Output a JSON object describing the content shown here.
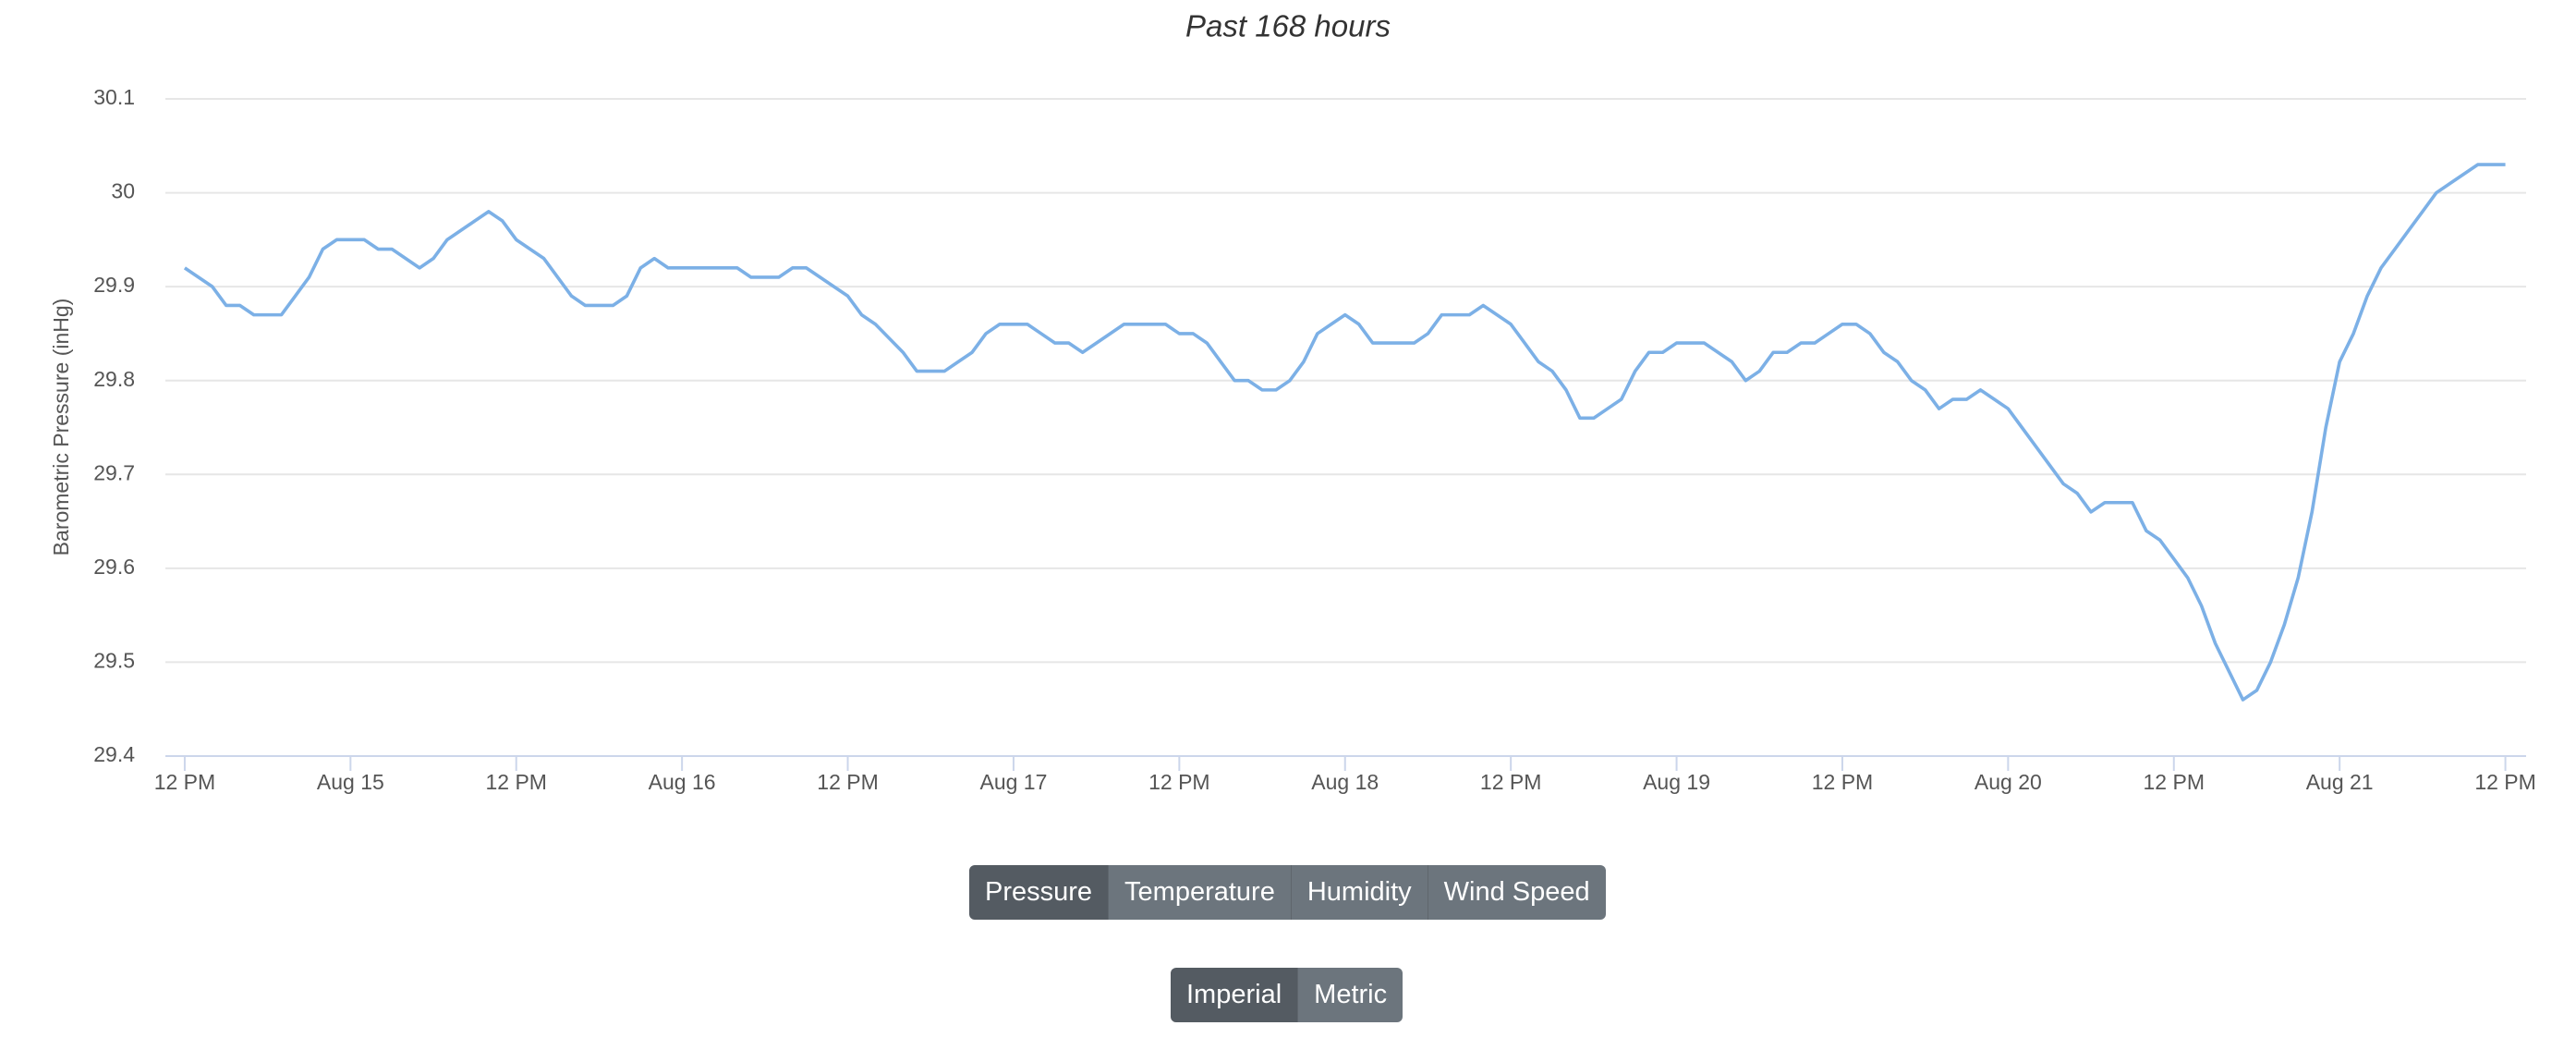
{
  "chart_data": {
    "type": "line",
    "title": "Past 168 hours",
    "y_label": "Barometric Pressure (inHg)",
    "x": [
      0,
      2,
      3,
      4,
      5,
      7,
      8,
      9,
      10,
      11,
      13,
      14,
      15,
      17,
      18,
      19,
      21,
      22,
      23,
      24,
      26,
      28,
      29,
      31,
      32,
      33,
      34,
      35,
      40,
      41,
      43,
      44,
      45,
      46,
      48,
      49,
      50,
      52,
      53,
      55,
      56,
      57,
      58,
      59,
      61,
      62,
      63,
      64,
      65,
      66,
      68,
      71,
      72,
      73,
      74,
      75,
      76,
      77,
      78,
      79,
      80,
      81,
      82,
      83,
      84,
      85,
      86,
      89,
      90,
      91,
      92,
      93,
      94,
      95,
      96,
      97,
      98,
      99,
      100,
      101,
      102,
      103,
      104,
      105,
      106,
      107,
      108,
      110,
      111,
      112,
      113,
      114,
      115,
      116,
      117,
      118,
      119,
      120,
      121,
      122,
      123,
      124,
      125,
      126,
      127,
      128,
      129,
      130,
      131,
      132,
      133,
      134,
      135,
      136,
      137,
      138,
      139,
      141,
      142,
      143,
      144,
      145,
      146,
      147,
      148,
      149,
      150,
      151,
      152,
      153,
      154,
      155,
      156,
      157,
      158,
      159,
      160,
      161,
      162,
      163,
      164,
      165,
      166,
      168
    ],
    "series": [
      {
        "name": "Pressure",
        "color": "#7cb0e6",
        "values": [
          29.92,
          29.9,
          29.88,
          29.88,
          29.87,
          29.87,
          29.89,
          29.91,
          29.94,
          29.95,
          29.95,
          29.94,
          29.94,
          29.92,
          29.93,
          29.95,
          29.97,
          29.98,
          29.97,
          29.95,
          29.93,
          29.89,
          29.88,
          29.88,
          29.89,
          29.92,
          29.93,
          29.92,
          29.92,
          29.91,
          29.91,
          29.92,
          29.92,
          29.91,
          29.89,
          29.87,
          29.86,
          29.83,
          29.81,
          29.81,
          29.82,
          29.83,
          29.85,
          29.86,
          29.86,
          29.85,
          29.84,
          29.84,
          29.83,
          29.84,
          29.86,
          29.86,
          29.85,
          29.85,
          29.84,
          29.82,
          29.8,
          29.8,
          29.79,
          29.79,
          29.8,
          29.82,
          29.85,
          29.86,
          29.87,
          29.86,
          29.84,
          29.84,
          29.85,
          29.87,
          29.87,
          29.87,
          29.88,
          29.87,
          29.86,
          29.84,
          29.82,
          29.81,
          29.79,
          29.76,
          29.76,
          29.77,
          29.78,
          29.81,
          29.83,
          29.83,
          29.84,
          29.84,
          29.83,
          29.82,
          29.8,
          29.81,
          29.83,
          29.83,
          29.84,
          29.84,
          29.85,
          29.86,
          29.86,
          29.85,
          29.83,
          29.82,
          29.8,
          29.79,
          29.77,
          29.78,
          29.78,
          29.79,
          29.78,
          29.77,
          29.75,
          29.73,
          29.71,
          29.69,
          29.68,
          29.66,
          29.67,
          29.67,
          29.64,
          29.63,
          29.61,
          29.59,
          29.56,
          29.52,
          29.49,
          29.46,
          29.47,
          29.5,
          29.54,
          29.59,
          29.66,
          29.75,
          29.82,
          29.85,
          29.89,
          29.92,
          29.94,
          29.96,
          29.98,
          30.0,
          30.01,
          30.02,
          30.03,
          30.03
        ]
      }
    ],
    "xlim": [
      -1.4,
      169.5
    ],
    "xticks": [
      {
        "value": 0,
        "label": "12 PM"
      },
      {
        "value": 12,
        "label": "Aug 15"
      },
      {
        "value": 24,
        "label": "12 PM"
      },
      {
        "value": 36,
        "label": "Aug 16"
      },
      {
        "value": 48,
        "label": "12 PM"
      },
      {
        "value": 60,
        "label": "Aug 17"
      },
      {
        "value": 72,
        "label": "12 PM"
      },
      {
        "value": 84,
        "label": "Aug 18"
      },
      {
        "value": 96,
        "label": "12 PM"
      },
      {
        "value": 108,
        "label": "Aug 19"
      },
      {
        "value": 120,
        "label": "12 PM"
      },
      {
        "value": 132,
        "label": "Aug 20"
      },
      {
        "value": 144,
        "label": "12 PM"
      },
      {
        "value": 156,
        "label": "Aug 21"
      },
      {
        "value": 168,
        "label": "12 PM"
      }
    ],
    "ylim": [
      29.4,
      30.1
    ],
    "yticks": [
      29.4,
      29.5,
      29.6,
      29.7,
      29.8,
      29.9,
      30,
      30.1
    ],
    "grid": true
  },
  "metric_buttons": {
    "labels": [
      "Pressure",
      "Temperature",
      "Humidity",
      "Wind Speed"
    ],
    "active_index": 0
  },
  "unit_buttons": {
    "labels": [
      "Imperial",
      "Metric"
    ],
    "active_index": 0
  }
}
